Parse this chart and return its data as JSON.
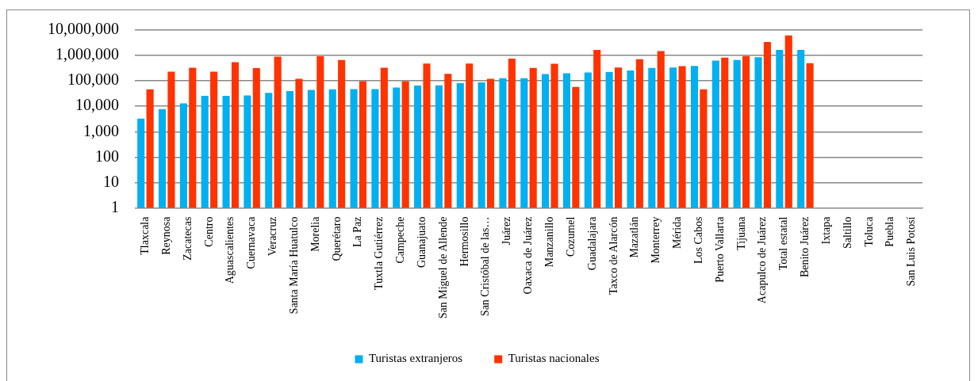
{
  "chart_data": {
    "type": "bar",
    "log": "y",
    "grid": "y",
    "legend": "bottom",
    "categories": [
      "Tlaxcala",
      "Reynosa",
      "Zacatecas",
      "Centro",
      "Aguascalientes",
      "Cuernavaca",
      "Veracruz",
      "Santa María Huatulco",
      "Morelia",
      "Querétaro",
      "La Paz",
      "Tuxtla Gutiérrez",
      "Campeche",
      "Guanajuato",
      "San Miguel de Allende",
      "Hermosillo",
      "San Cristóbal de las…",
      "Juárez",
      "Oaxaca de Juárez",
      "Manzanillo",
      "Cozumel",
      "Guadalajara",
      "Taxco de Alarcón",
      "Mazatlán",
      "Monterrey",
      "Mérida",
      "Los Cabos",
      "Puerto Vallarta",
      "Tijuana",
      "Acapulco de Juárez",
      "Total estatal",
      "Benito Juárez",
      "Ixtapa",
      "Saltillo",
      "Toluca",
      "Puebla",
      "San Luis Potosí"
    ],
    "series": [
      {
        "name": "Turistas extranjeros",
        "color": "#00b0f0",
        "values": [
          3300,
          7700,
          13000,
          26000,
          26000,
          27000,
          34000,
          40000,
          44000,
          47000,
          48000,
          48000,
          55000,
          66000,
          67000,
          81000,
          88000,
          128000,
          128000,
          186000,
          200000,
          214000,
          224000,
          258000,
          324000,
          337000,
          390000,
          630000,
          660000,
          850000,
          1660000,
          1660000,
          null,
          null,
          null,
          null,
          null
        ]
      },
      {
        "name": "Turistas nacionales",
        "color": "#ff3300",
        "values": [
          47000,
          230000,
          330000,
          230000,
          550000,
          320000,
          900000,
          120000,
          930000,
          660000,
          98000,
          330000,
          98000,
          480000,
          190000,
          480000,
          122000,
          760000,
          324000,
          470000,
          58000,
          1660000,
          337000,
          710000,
          1490000,
          380000,
          47000,
          830000,
          950000,
          3400000,
          6200000,
          500000,
          null,
          null,
          null,
          null,
          null
        ]
      }
    ],
    "ylim": [
      1,
      10000000
    ],
    "yticks": [
      {
        "value": 1,
        "label": "1"
      },
      {
        "value": 10,
        "label": "10"
      },
      {
        "value": 100,
        "label": "100"
      },
      {
        "value": 1000,
        "label": "1,000"
      },
      {
        "value": 10000,
        "label": "10,000"
      },
      {
        "value": 100000,
        "label": "100,000"
      },
      {
        "value": 1000000,
        "label": "1,000,000"
      },
      {
        "value": 10000000,
        "label": "10,000,000"
      }
    ]
  }
}
